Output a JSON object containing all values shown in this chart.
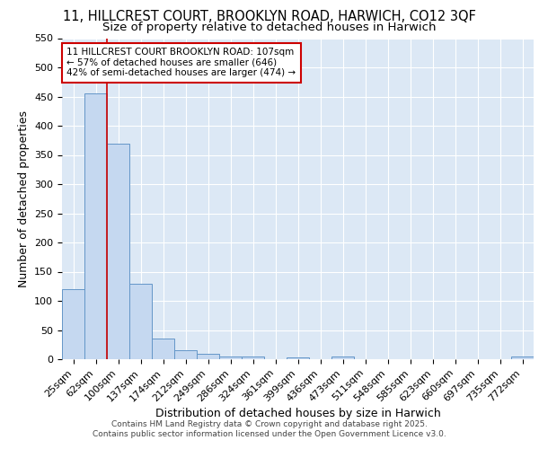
{
  "title_line1": "11, HILLCREST COURT, BROOKLYN ROAD, HARWICH, CO12 3QF",
  "title_line2": "Size of property relative to detached houses in Harwich",
  "xlabel": "Distribution of detached houses by size in Harwich",
  "ylabel": "Number of detached properties",
  "categories": [
    "25sqm",
    "62sqm",
    "100sqm",
    "137sqm",
    "174sqm",
    "212sqm",
    "249sqm",
    "286sqm",
    "324sqm",
    "361sqm",
    "399sqm",
    "436sqm",
    "473sqm",
    "511sqm",
    "548sqm",
    "585sqm",
    "623sqm",
    "660sqm",
    "697sqm",
    "735sqm",
    "772sqm"
  ],
  "values": [
    120,
    455,
    370,
    130,
    35,
    15,
    9,
    5,
    4,
    0,
    3,
    0,
    5,
    0,
    0,
    0,
    0,
    0,
    0,
    0,
    4
  ],
  "bar_color": "#c5d8f0",
  "bar_edge_color": "#6496c8",
  "background_color": "#dce8f5",
  "vline_x_idx": 2,
  "vline_color": "#cc0000",
  "annotation_text": "11 HILLCREST COURT BROOKLYN ROAD: 107sqm\n← 57% of detached houses are smaller (646)\n42% of semi-detached houses are larger (474) →",
  "annotation_box_color": "#ffffff",
  "annotation_box_edge": "#cc0000",
  "ylim": [
    0,
    550
  ],
  "yticks": [
    0,
    50,
    100,
    150,
    200,
    250,
    300,
    350,
    400,
    450,
    500,
    550
  ],
  "footer_text": "Contains HM Land Registry data © Crown copyright and database right 2025.\nContains public sector information licensed under the Open Government Licence v3.0.",
  "title_fontsize": 10.5,
  "subtitle_fontsize": 9.5,
  "axis_label_fontsize": 9,
  "tick_fontsize": 8,
  "annotation_fontsize": 7.5,
  "footer_fontsize": 6.5
}
